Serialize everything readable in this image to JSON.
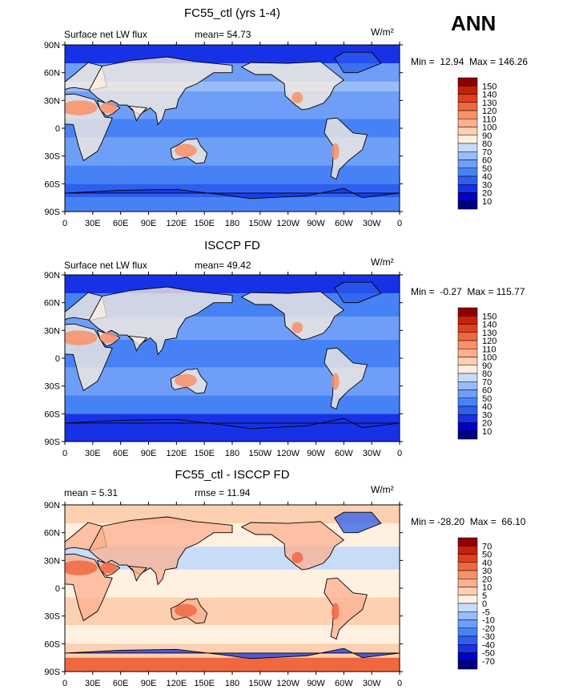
{
  "season": "ANN",
  "panels": [
    {
      "title": "FC55_ctl (yrs 1-4)",
      "left_label": "Surface net LW flux",
      "stat1": "mean=  54.73",
      "stat2": "",
      "units": "W/m²",
      "minmax": "Min =  12.94  Max = 146.26",
      "colors": [
        "#00007f",
        "#0000c8",
        "#1732e6",
        "#2d5ef0",
        "#4682f5",
        "#6e9ef8",
        "#98bcf8",
        "#c8dcfa",
        "#fff0e0",
        "#fcd0b0",
        "#fcb090",
        "#f89068",
        "#f06840",
        "#e04020",
        "#c82008",
        "#8c0000"
      ],
      "labels": [
        "150",
        "140",
        "130",
        "120",
        "110",
        "100",
        "90",
        "80",
        "70",
        "60",
        "50",
        "40",
        "30",
        "20",
        "10"
      ],
      "palette": "abs"
    },
    {
      "title": "ISCCP FD",
      "left_label": "Surface net LW flux",
      "stat1": "mean=  49.42",
      "stat2": "",
      "units": "W/m²",
      "minmax": "Min =  -0.27  Max = 115.77",
      "colors": [
        "#00007f",
        "#0000c8",
        "#1732e6",
        "#2d5ef0",
        "#4682f5",
        "#6e9ef8",
        "#98bcf8",
        "#c8dcfa",
        "#fff0e0",
        "#fcd0b0",
        "#fcb090",
        "#f89068",
        "#f06840",
        "#e04020",
        "#c82008",
        "#8c0000"
      ],
      "labels": [
        "150",
        "140",
        "130",
        "120",
        "110",
        "100",
        "90",
        "80",
        "70",
        "60",
        "50",
        "40",
        "30",
        "20",
        "10"
      ],
      "palette": "abs"
    },
    {
      "title": "FC55_ctl - ISCCP FD",
      "left_label": "mean =   5.31",
      "stat1": "rmse =  11.94",
      "stat2": "",
      "units": "W/m²",
      "minmax": "Min = -28.20  Max =  66.10",
      "colors": [
        "#00007f",
        "#0000c8",
        "#1732e6",
        "#2d5ef0",
        "#4682f5",
        "#6e9ef8",
        "#98bcf8",
        "#c8dcfa",
        "#fff0e0",
        "#fcd0b0",
        "#fcb090",
        "#f89068",
        "#f06840",
        "#e04020",
        "#c82008",
        "#8c0000"
      ],
      "labels": [
        "70",
        "50",
        "40",
        "30",
        "20",
        "10",
        "5",
        "0",
        "-5",
        "-10",
        "-20",
        "-30",
        "-40",
        "-50",
        "-70"
      ],
      "palette": "diff"
    }
  ],
  "lat_ticks": [
    "90N",
    "60N",
    "30N",
    "0",
    "30S",
    "60S",
    "90S"
  ],
  "lon_ticks": [
    "0",
    "30E",
    "60E",
    "90E",
    "120E",
    "150E",
    "180",
    "150W",
    "120W",
    "90W",
    "60W",
    "30W",
    "0"
  ]
}
